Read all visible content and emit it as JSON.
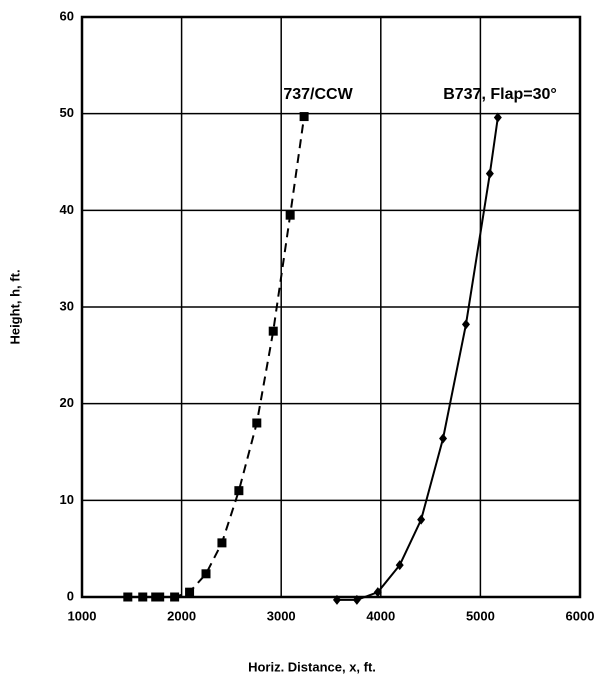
{
  "chart_data": {
    "type": "line",
    "xlabel": "Horiz.  Distance,  x,  ft.",
    "ylabel": "Height,  h,  ft.",
    "xlim": [
      1000,
      6000
    ],
    "xticks": [
      1000,
      2000,
      3000,
      4000,
      5000,
      6000
    ],
    "ylim": [
      0,
      60
    ],
    "yticks": [
      0,
      10,
      20,
      30,
      40,
      50,
      60
    ],
    "grid": true,
    "annotations": [
      "737/CCW",
      "B737,  Flap=30°"
    ],
    "series": [
      {
        "name": "737/CCW",
        "color": "#000000",
        "dash": true,
        "marker": "square",
        "x": [
          1460,
          1610,
          1740,
          1780,
          1930,
          2080,
          2245,
          2405,
          2575,
          2755,
          2920,
          3090,
          3230
        ],
        "values": [
          0,
          0,
          0,
          0,
          0,
          0.5,
          2.4,
          5.6,
          11,
          18,
          27.5,
          39.5,
          49.7
        ]
      },
      {
        "name": "B737,  Flap=30°",
        "color": "#000000",
        "dash": false,
        "marker": "diamond",
        "x": [
          3560,
          3760,
          3970,
          4190,
          4405,
          4625,
          4855,
          5095,
          5175
        ],
        "values": [
          -0.3,
          -0.3,
          0.5,
          3.3,
          8,
          16.4,
          28.2,
          43.8,
          49.6
        ]
      }
    ]
  }
}
